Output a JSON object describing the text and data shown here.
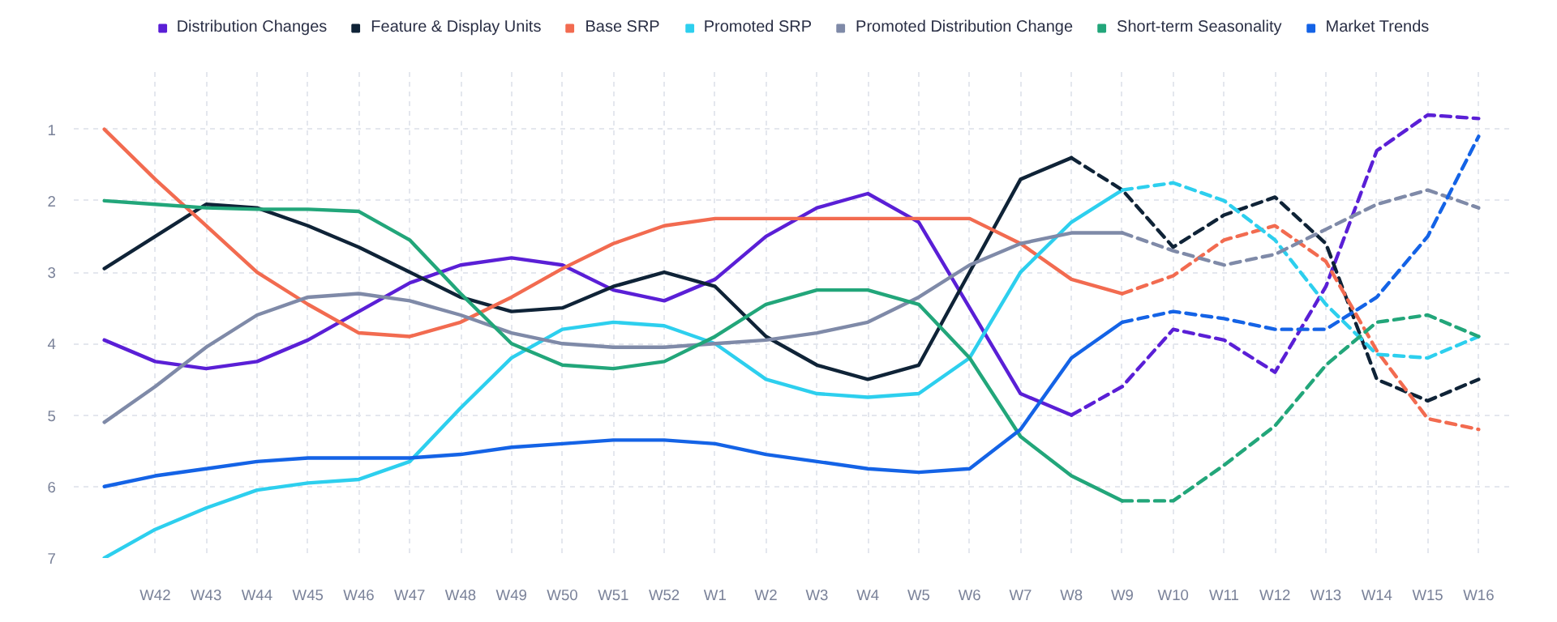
{
  "chart_data": {
    "type": "line",
    "categories": [
      null,
      "W42",
      "W43",
      "W44",
      "W45",
      "W46",
      "W47",
      "W48",
      "W49",
      "W50",
      "W51",
      "W52",
      "W1",
      "W2",
      "W3",
      "W4",
      "W5",
      "W6",
      "W7",
      "W8",
      "W9",
      "W10",
      "W11",
      "W12",
      "W13",
      "W14",
      "W15",
      "W16"
    ],
    "ylim": [
      7,
      0.2
    ],
    "yticks": [
      1,
      2,
      3,
      4,
      5,
      6,
      7
    ],
    "grid": true,
    "legend": "top",
    "marker": "none",
    "series": [
      {
        "name": "Distribution Changes",
        "color": "#5a1fd6",
        "line_style": "solid",
        "values": [
          3.95,
          4.25,
          4.35,
          4.25,
          3.95,
          3.55,
          3.15,
          2.9,
          2.8,
          2.9,
          3.25,
          3.4,
          3.1,
          2.5,
          2.1,
          1.9,
          2.3,
          3.5,
          4.7,
          5.0,
          null,
          null,
          null,
          null,
          null,
          null,
          null,
          null
        ]
      },
      {
        "name": "Feature & Display Units",
        "color": "#0f2337",
        "line_style": "solid",
        "values": [
          2.95,
          2.5,
          2.05,
          2.1,
          2.35,
          2.65,
          3.0,
          3.35,
          3.55,
          3.5,
          3.2,
          3.0,
          3.2,
          3.9,
          4.3,
          4.5,
          4.3,
          3.0,
          1.7,
          1.4,
          null,
          null,
          null,
          null,
          null,
          null,
          null,
          null
        ]
      },
      {
        "name": "Base SRP",
        "color": "#f26b50",
        "line_style": "solid",
        "values": [
          1.0,
          1.7,
          2.35,
          3.0,
          3.45,
          3.85,
          3.9,
          3.7,
          3.35,
          2.95,
          2.6,
          2.35,
          2.25,
          2.25,
          2.25,
          2.25,
          2.25,
          2.25,
          2.6,
          3.1,
          3.3,
          null,
          null,
          null,
          null,
          null,
          null,
          null
        ]
      },
      {
        "name": "Promoted SRP",
        "color": "#2dcfee",
        "line_style": "solid",
        "values": [
          7.0,
          6.6,
          6.3,
          6.05,
          5.95,
          5.9,
          5.65,
          4.9,
          4.2,
          3.8,
          3.7,
          3.75,
          4.0,
          4.5,
          4.7,
          4.75,
          4.7,
          4.2,
          3.0,
          2.3,
          1.85,
          null,
          null,
          null,
          null,
          null,
          null,
          null
        ]
      },
      {
        "name": "Promoted Distribution Change",
        "color": "#7f8aa8",
        "line_style": "solid",
        "values": [
          5.1,
          4.6,
          4.05,
          3.6,
          3.35,
          3.3,
          3.4,
          3.6,
          3.85,
          4.0,
          4.05,
          4.05,
          4.0,
          3.95,
          3.85,
          3.7,
          3.35,
          2.9,
          2.6,
          2.45,
          2.45,
          null,
          null,
          null,
          null,
          null,
          null,
          null
        ]
      },
      {
        "name": "Short-term Seasonality",
        "color": "#22a67a",
        "line_style": "solid",
        "values": [
          2.0,
          2.05,
          2.1,
          2.12,
          2.12,
          2.15,
          2.55,
          3.3,
          4.0,
          4.3,
          4.35,
          4.25,
          3.9,
          3.45,
          3.25,
          3.25,
          3.45,
          4.2,
          5.3,
          5.85,
          6.2,
          null,
          null,
          null,
          null,
          null,
          null,
          null
        ]
      },
      {
        "name": "Market Trends",
        "color": "#1463e6",
        "line_style": "solid",
        "values": [
          6.0,
          5.85,
          5.75,
          5.65,
          5.6,
          5.6,
          5.6,
          5.55,
          5.45,
          5.4,
          5.35,
          5.35,
          5.4,
          5.55,
          5.65,
          5.75,
          5.8,
          5.75,
          5.2,
          4.2,
          3.7,
          null,
          null,
          null,
          null,
          null,
          null,
          null
        ]
      },
      {
        "color": "#5a1fd6",
        "line_style": "dashed",
        "values": [
          null,
          null,
          null,
          null,
          null,
          null,
          null,
          null,
          null,
          null,
          null,
          null,
          null,
          null,
          null,
          null,
          null,
          null,
          null,
          5.0,
          4.6,
          3.8,
          3.95,
          4.4,
          3.2,
          1.3,
          0.8,
          0.85
        ]
      },
      {
        "color": "#0f2337",
        "line_style": "dashed",
        "values": [
          null,
          null,
          null,
          null,
          null,
          null,
          null,
          null,
          null,
          null,
          null,
          null,
          null,
          null,
          null,
          null,
          null,
          null,
          null,
          1.4,
          1.85,
          2.65,
          2.2,
          1.95,
          2.6,
          4.5,
          4.8,
          4.5
        ]
      },
      {
        "color": "#f26b50",
        "line_style": "dashed",
        "values": [
          null,
          null,
          null,
          null,
          null,
          null,
          null,
          null,
          null,
          null,
          null,
          null,
          null,
          null,
          null,
          null,
          null,
          null,
          null,
          null,
          3.3,
          3.05,
          2.55,
          2.35,
          2.85,
          4.1,
          5.05,
          5.2
        ]
      },
      {
        "color": "#2dcfee",
        "line_style": "dashed",
        "values": [
          null,
          null,
          null,
          null,
          null,
          null,
          null,
          null,
          null,
          null,
          null,
          null,
          null,
          null,
          null,
          null,
          null,
          null,
          null,
          null,
          1.85,
          1.75,
          2.0,
          2.55,
          3.45,
          4.15,
          4.2,
          3.9
        ]
      },
      {
        "color": "#7f8aa8",
        "line_style": "dashed",
        "values": [
          null,
          null,
          null,
          null,
          null,
          null,
          null,
          null,
          null,
          null,
          null,
          null,
          null,
          null,
          null,
          null,
          null,
          null,
          null,
          null,
          2.45,
          2.7,
          2.9,
          2.75,
          2.4,
          2.05,
          1.85,
          2.1
        ]
      },
      {
        "color": "#22a67a",
        "line_style": "dashed",
        "values": [
          null,
          null,
          null,
          null,
          null,
          null,
          null,
          null,
          null,
          null,
          null,
          null,
          null,
          null,
          null,
          null,
          null,
          null,
          null,
          null,
          6.2,
          6.2,
          5.7,
          5.15,
          4.3,
          3.7,
          3.6,
          3.9
        ]
      },
      {
        "color": "#1463e6",
        "line_style": "dashed",
        "values": [
          null,
          null,
          null,
          null,
          null,
          null,
          null,
          null,
          null,
          null,
          null,
          null,
          null,
          null,
          null,
          null,
          null,
          null,
          null,
          null,
          3.7,
          3.55,
          3.65,
          3.8,
          3.8,
          3.35,
          2.5,
          1.1
        ]
      }
    ]
  }
}
